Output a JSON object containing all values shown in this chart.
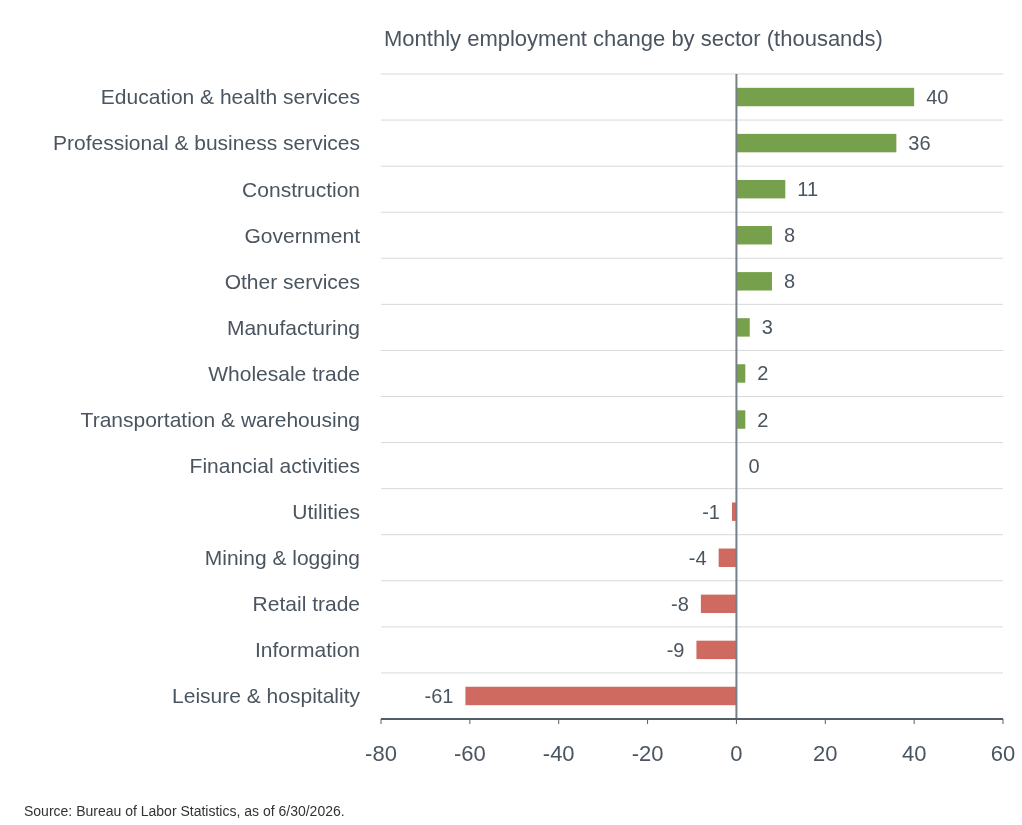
{
  "chart_data": {
    "type": "bar",
    "orientation": "horizontal",
    "title": "Monthly employment change by sector (thousands)",
    "categories": [
      "Education & health services",
      "Professional & business services",
      "Construction",
      "Government",
      "Other services",
      "Manufacturing",
      "Wholesale trade",
      "Transportation & warehousing",
      "Financial activities",
      "Utilities",
      "Mining & logging",
      "Retail trade",
      "Information",
      "Leisure & hospitality"
    ],
    "values": [
      40,
      36,
      11,
      8,
      8,
      3,
      2,
      2,
      0,
      -1,
      -4,
      -8,
      -9,
      -61
    ],
    "colors": [
      "#76a04b",
      "#76a04b",
      "#76a04b",
      "#76a04b",
      "#76a04b",
      "#76a04b",
      "#76a04b",
      "#76a04b",
      "#76a04b",
      "#cf6a61",
      "#cf6a61",
      "#cf6a61",
      "#cf6a61",
      "#cf6a61"
    ],
    "xlim": [
      -80,
      60
    ],
    "xticks": [
      -80,
      -60,
      -40,
      -20,
      0,
      20,
      40,
      60
    ],
    "grid": "y",
    "data_labels": true,
    "annotations": [
      "Source: Bureau of Labor Statistics, as of 6/30/2026."
    ]
  }
}
